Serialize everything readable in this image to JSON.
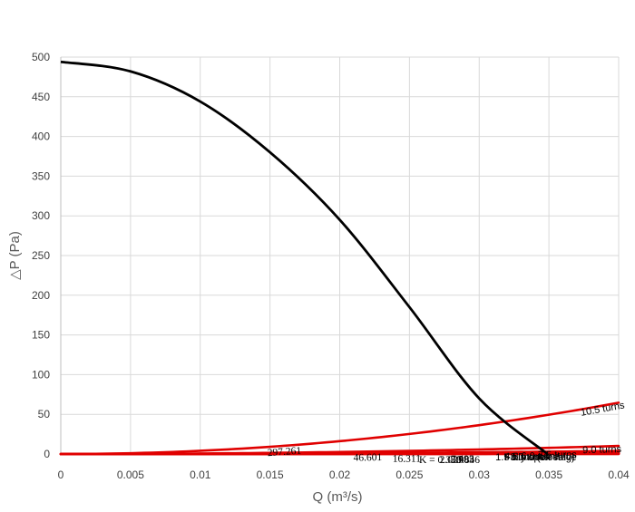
{
  "chart_data": {
    "type": "line",
    "xlabel": "Q (m³/s)",
    "ylabel": "△P (Pa)",
    "xlim": [
      0,
      0.04
    ],
    "ylim": [
      0,
      500
    ],
    "x_ticks": [
      "0",
      "0.005",
      "0.01",
      "0.015",
      "0.02",
      "0.025",
      "0.03",
      "0.035",
      "0.04"
    ],
    "y_ticks": [
      "0",
      "50",
      "100",
      "150",
      "200",
      "250",
      "300",
      "350",
      "400",
      "450",
      "500"
    ],
    "grid": "vertical and horizontal gridlines",
    "colors": {
      "valve_curves": "#e00000",
      "fan_curve": "#000000"
    },
    "fan_curve": {
      "x": [
        0,
        0.005,
        0.01,
        0.015,
        0.02,
        0.025,
        0.03,
        0.0349
      ],
      "y": [
        494,
        482,
        444,
        380,
        295,
        185,
        70,
        0
      ]
    },
    "valve_curves": [
      {
        "setting": "10.5 turns",
        "k_label": "297.261",
        "k": 40400
      },
      {
        "setting": "9.0 turns",
        "k_label": "46.601",
        "k": 6350
      },
      {
        "setting": "7.5 turns",
        "k_label": "16.311",
        "k": 2420
      },
      {
        "setting": "6.0 turns",
        "k_label": "7.495",
        "k": 1115
      },
      {
        "setting": "4.5 turns",
        "k_label": "3.983",
        "k": 590
      },
      {
        "setting": "3.0 turns",
        "k_label": "2.027",
        "k": 305
      },
      {
        "setting": "1.5 turns (closing)",
        "k_label": "0.846",
        "k": 140
      },
      {
        "setting": "Fully open valve",
        "k_label": "K = 0.338",
        "k": 65
      }
    ]
  }
}
